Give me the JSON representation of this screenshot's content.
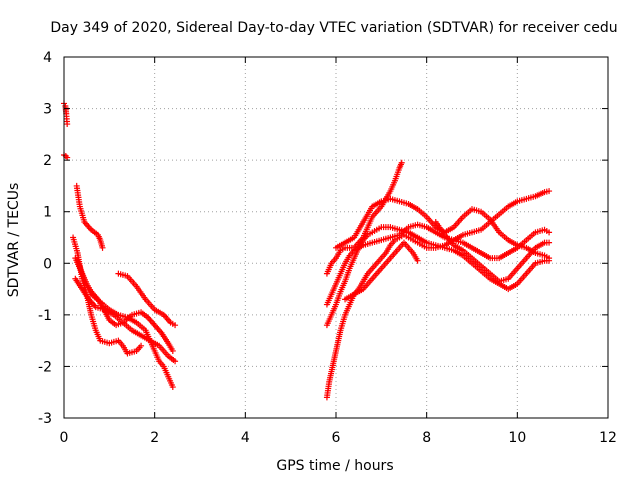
{
  "chart_data": {
    "type": "scatter",
    "title": "Day 349 of 2020, Sidereal Day-to-day VTEC variation (SDTVAR) for receiver cedu",
    "xlabel": "GPS time / hours",
    "ylabel": "SDTVAR / TECUs",
    "xlim": [
      0,
      12
    ],
    "ylim": [
      -3,
      4
    ],
    "xticks": [
      "0",
      "2",
      "4",
      "6",
      "8",
      "10",
      "12"
    ],
    "yticks": [
      "-3",
      "-2",
      "-1",
      "0",
      "1",
      "2",
      "3",
      "4"
    ],
    "grid": true,
    "marker": "+",
    "color": "#ff0000",
    "series": [
      {
        "name": "s1a",
        "points": [
          [
            0.0,
            3.1
          ],
          [
            0.03,
            3.05
          ],
          [
            0.05,
            2.9
          ],
          [
            0.06,
            2.8
          ],
          [
            0.07,
            2.7
          ]
        ]
      },
      {
        "name": "s1b",
        "points": [
          [
            0.0,
            2.1
          ],
          [
            0.04,
            2.08
          ],
          [
            0.07,
            2.05
          ]
        ]
      },
      {
        "name": "s2a",
        "points": [
          [
            0.28,
            1.5
          ],
          [
            0.35,
            1.1
          ],
          [
            0.45,
            0.8
          ],
          [
            0.6,
            0.65
          ],
          [
            0.75,
            0.55
          ],
          [
            0.8,
            0.45
          ],
          [
            0.85,
            0.3
          ]
        ]
      },
      {
        "name": "s2b",
        "points": [
          [
            0.2,
            0.5
          ],
          [
            0.3,
            0.2
          ],
          [
            0.4,
            -0.3
          ],
          [
            0.5,
            -0.6
          ],
          [
            0.6,
            -1.0
          ],
          [
            0.7,
            -1.3
          ],
          [
            0.8,
            -1.5
          ],
          [
            1.0,
            -1.55
          ],
          [
            1.2,
            -1.5
          ],
          [
            1.3,
            -1.6
          ],
          [
            1.4,
            -1.75
          ],
          [
            1.6,
            -1.7
          ],
          [
            1.7,
            -1.6
          ]
        ]
      },
      {
        "name": "s2c",
        "points": [
          [
            0.25,
            0.1
          ],
          [
            0.35,
            -0.1
          ],
          [
            0.5,
            -0.4
          ],
          [
            0.6,
            -0.6
          ],
          [
            0.8,
            -0.75
          ],
          [
            1.0,
            -0.9
          ],
          [
            1.2,
            -1.0
          ],
          [
            1.4,
            -1.05
          ],
          [
            1.6,
            -1.15
          ],
          [
            1.8,
            -1.3
          ],
          [
            1.9,
            -1.5
          ],
          [
            2.0,
            -1.7
          ],
          [
            2.1,
            -1.9
          ],
          [
            2.2,
            -2.0
          ],
          [
            2.3,
            -2.2
          ],
          [
            2.4,
            -2.4
          ]
        ]
      },
      {
        "name": "s2d",
        "points": [
          [
            0.25,
            -0.3
          ],
          [
            0.4,
            -0.5
          ],
          [
            0.55,
            -0.7
          ],
          [
            0.7,
            -0.85
          ],
          [
            0.9,
            -0.9
          ],
          [
            1.1,
            -1.0
          ],
          [
            1.3,
            -1.15
          ],
          [
            1.5,
            -1.3
          ],
          [
            1.7,
            -1.4
          ],
          [
            1.9,
            -1.5
          ],
          [
            2.1,
            -1.6
          ],
          [
            2.3,
            -1.8
          ],
          [
            2.45,
            -1.9
          ]
        ]
      },
      {
        "name": "s2e",
        "points": [
          [
            0.3,
            0.05
          ],
          [
            0.4,
            -0.2
          ],
          [
            0.5,
            -0.4
          ],
          [
            0.6,
            -0.55
          ],
          [
            0.75,
            -0.7
          ],
          [
            0.85,
            -0.85
          ],
          [
            1.0,
            -1.1
          ],
          [
            1.15,
            -1.2
          ],
          [
            1.3,
            -1.15
          ],
          [
            1.5,
            -1.0
          ],
          [
            1.7,
            -0.95
          ],
          [
            1.85,
            -1.05
          ],
          [
            2.0,
            -1.2
          ],
          [
            2.15,
            -1.35
          ],
          [
            2.3,
            -1.55
          ],
          [
            2.4,
            -1.7
          ]
        ]
      },
      {
        "name": "s2f",
        "points": [
          [
            1.2,
            -0.2
          ],
          [
            1.4,
            -0.25
          ],
          [
            1.6,
            -0.45
          ],
          [
            1.8,
            -0.7
          ],
          [
            2.0,
            -0.9
          ],
          [
            2.2,
            -1.0
          ],
          [
            2.35,
            -1.15
          ],
          [
            2.45,
            -1.2
          ]
        ]
      },
      {
        "name": "s3a",
        "points": [
          [
            5.8,
            -2.6
          ],
          [
            5.85,
            -2.3
          ],
          [
            5.9,
            -2.1
          ],
          [
            6.0,
            -1.7
          ],
          [
            6.1,
            -1.3
          ],
          [
            6.2,
            -1.0
          ],
          [
            6.3,
            -0.8
          ],
          [
            6.4,
            -0.6
          ],
          [
            6.5,
            -0.5
          ],
          [
            6.6,
            -0.35
          ],
          [
            6.7,
            -0.2
          ],
          [
            6.8,
            -0.1
          ],
          [
            6.9,
            0.0
          ],
          [
            7.0,
            0.1
          ],
          [
            7.1,
            0.2
          ],
          [
            7.2,
            0.35
          ],
          [
            7.3,
            0.45
          ],
          [
            7.4,
            0.5
          ],
          [
            7.5,
            0.55
          ],
          [
            7.6,
            0.5
          ],
          [
            7.7,
            0.45
          ],
          [
            7.8,
            0.4
          ],
          [
            7.9,
            0.35
          ],
          [
            8.0,
            0.3
          ],
          [
            8.2,
            0.3
          ],
          [
            8.4,
            0.35
          ],
          [
            8.6,
            0.45
          ],
          [
            8.8,
            0.55
          ],
          [
            9.0,
            0.6
          ],
          [
            9.2,
            0.65
          ],
          [
            9.4,
            0.8
          ],
          [
            9.6,
            0.95
          ],
          [
            9.8,
            1.1
          ],
          [
            10.0,
            1.2
          ],
          [
            10.2,
            1.25
          ],
          [
            10.4,
            1.3
          ],
          [
            10.6,
            1.38
          ],
          [
            10.7,
            1.4
          ]
        ]
      },
      {
        "name": "s3b",
        "points": [
          [
            5.8,
            -1.2
          ],
          [
            5.9,
            -1.0
          ],
          [
            6.0,
            -0.8
          ],
          [
            6.1,
            -0.55
          ],
          [
            6.2,
            -0.35
          ],
          [
            6.3,
            -0.1
          ],
          [
            6.4,
            0.1
          ],
          [
            6.5,
            0.3
          ],
          [
            6.6,
            0.45
          ],
          [
            6.7,
            0.55
          ],
          [
            6.8,
            0.6
          ],
          [
            6.9,
            0.65
          ],
          [
            7.0,
            0.7
          ],
          [
            7.2,
            0.7
          ],
          [
            7.4,
            0.65
          ],
          [
            7.6,
            0.6
          ],
          [
            7.8,
            0.5
          ],
          [
            8.0,
            0.4
          ],
          [
            8.2,
            0.35
          ],
          [
            8.4,
            0.3
          ],
          [
            8.6,
            0.25
          ],
          [
            8.8,
            0.15
          ],
          [
            9.0,
            0.0
          ],
          [
            9.2,
            -0.15
          ],
          [
            9.4,
            -0.3
          ],
          [
            9.6,
            -0.4
          ],
          [
            9.8,
            -0.5
          ],
          [
            10.0,
            -0.4
          ],
          [
            10.2,
            -0.2
          ],
          [
            10.4,
            0.0
          ],
          [
            10.6,
            0.05
          ],
          [
            10.7,
            0.05
          ]
        ]
      },
      {
        "name": "s3c",
        "points": [
          [
            5.8,
            -0.8
          ],
          [
            5.9,
            -0.6
          ],
          [
            6.0,
            -0.4
          ],
          [
            6.1,
            -0.2
          ],
          [
            6.2,
            0.0
          ],
          [
            6.3,
            0.15
          ],
          [
            6.4,
            0.25
          ],
          [
            6.6,
            0.35
          ],
          [
            6.8,
            0.4
          ],
          [
            7.0,
            0.45
          ],
          [
            7.2,
            0.5
          ],
          [
            7.4,
            0.55
          ],
          [
            7.6,
            0.7
          ],
          [
            7.8,
            0.75
          ],
          [
            8.0,
            0.7
          ],
          [
            8.2,
            0.6
          ],
          [
            8.4,
            0.5
          ],
          [
            8.6,
            0.45
          ],
          [
            8.8,
            0.4
          ],
          [
            9.0,
            0.3
          ],
          [
            9.2,
            0.2
          ],
          [
            9.4,
            0.1
          ],
          [
            9.6,
            0.1
          ],
          [
            9.8,
            0.2
          ],
          [
            10.0,
            0.3
          ],
          [
            10.2,
            0.45
          ],
          [
            10.4,
            0.6
          ],
          [
            10.6,
            0.65
          ],
          [
            10.7,
            0.6
          ]
        ]
      },
      {
        "name": "s3d",
        "points": [
          [
            5.8,
            -0.2
          ],
          [
            5.9,
            0.0
          ],
          [
            6.0,
            0.1
          ],
          [
            6.1,
            0.25
          ],
          [
            6.2,
            0.3
          ],
          [
            6.4,
            0.3
          ],
          [
            6.6,
            0.5
          ],
          [
            6.7,
            0.7
          ],
          [
            6.8,
            0.9
          ],
          [
            6.9,
            1.0
          ],
          [
            7.0,
            1.1
          ],
          [
            7.1,
            1.25
          ],
          [
            7.2,
            1.4
          ],
          [
            7.3,
            1.6
          ],
          [
            7.4,
            1.85
          ],
          [
            7.45,
            1.95
          ]
        ]
      },
      {
        "name": "s3e",
        "points": [
          [
            6.0,
            0.3
          ],
          [
            6.2,
            0.4
          ],
          [
            6.4,
            0.5
          ],
          [
            6.6,
            0.8
          ],
          [
            6.8,
            1.1
          ],
          [
            7.0,
            1.2
          ],
          [
            7.2,
            1.25
          ],
          [
            7.4,
            1.2
          ],
          [
            7.6,
            1.15
          ],
          [
            7.8,
            1.05
          ],
          [
            8.0,
            0.9
          ],
          [
            8.2,
            0.7
          ],
          [
            8.4,
            0.6
          ],
          [
            8.6,
            0.7
          ],
          [
            8.8,
            0.9
          ],
          [
            9.0,
            1.05
          ],
          [
            9.2,
            1.0
          ],
          [
            9.4,
            0.85
          ],
          [
            9.6,
            0.6
          ],
          [
            9.8,
            0.45
          ],
          [
            10.0,
            0.35
          ],
          [
            10.2,
            0.3
          ],
          [
            10.4,
            0.2
          ],
          [
            10.6,
            0.15
          ],
          [
            10.7,
            0.1
          ]
        ]
      },
      {
        "name": "s3f",
        "points": [
          [
            6.2,
            -0.7
          ],
          [
            6.4,
            -0.6
          ],
          [
            6.6,
            -0.5
          ],
          [
            6.8,
            -0.3
          ],
          [
            7.0,
            -0.1
          ],
          [
            7.2,
            0.1
          ],
          [
            7.4,
            0.3
          ],
          [
            7.5,
            0.4
          ],
          [
            7.7,
            0.2
          ],
          [
            7.8,
            0.05
          ]
        ]
      },
      {
        "name": "s3g",
        "points": [
          [
            8.2,
            0.8
          ],
          [
            8.4,
            0.55
          ],
          [
            8.6,
            0.35
          ],
          [
            8.8,
            0.25
          ],
          [
            9.0,
            0.1
          ],
          [
            9.2,
            -0.05
          ],
          [
            9.4,
            -0.2
          ],
          [
            9.6,
            -0.35
          ],
          [
            9.8,
            -0.3
          ],
          [
            10.0,
            -0.1
          ],
          [
            10.2,
            0.1
          ],
          [
            10.4,
            0.3
          ],
          [
            10.6,
            0.4
          ],
          [
            10.7,
            0.4
          ]
        ]
      }
    ]
  }
}
